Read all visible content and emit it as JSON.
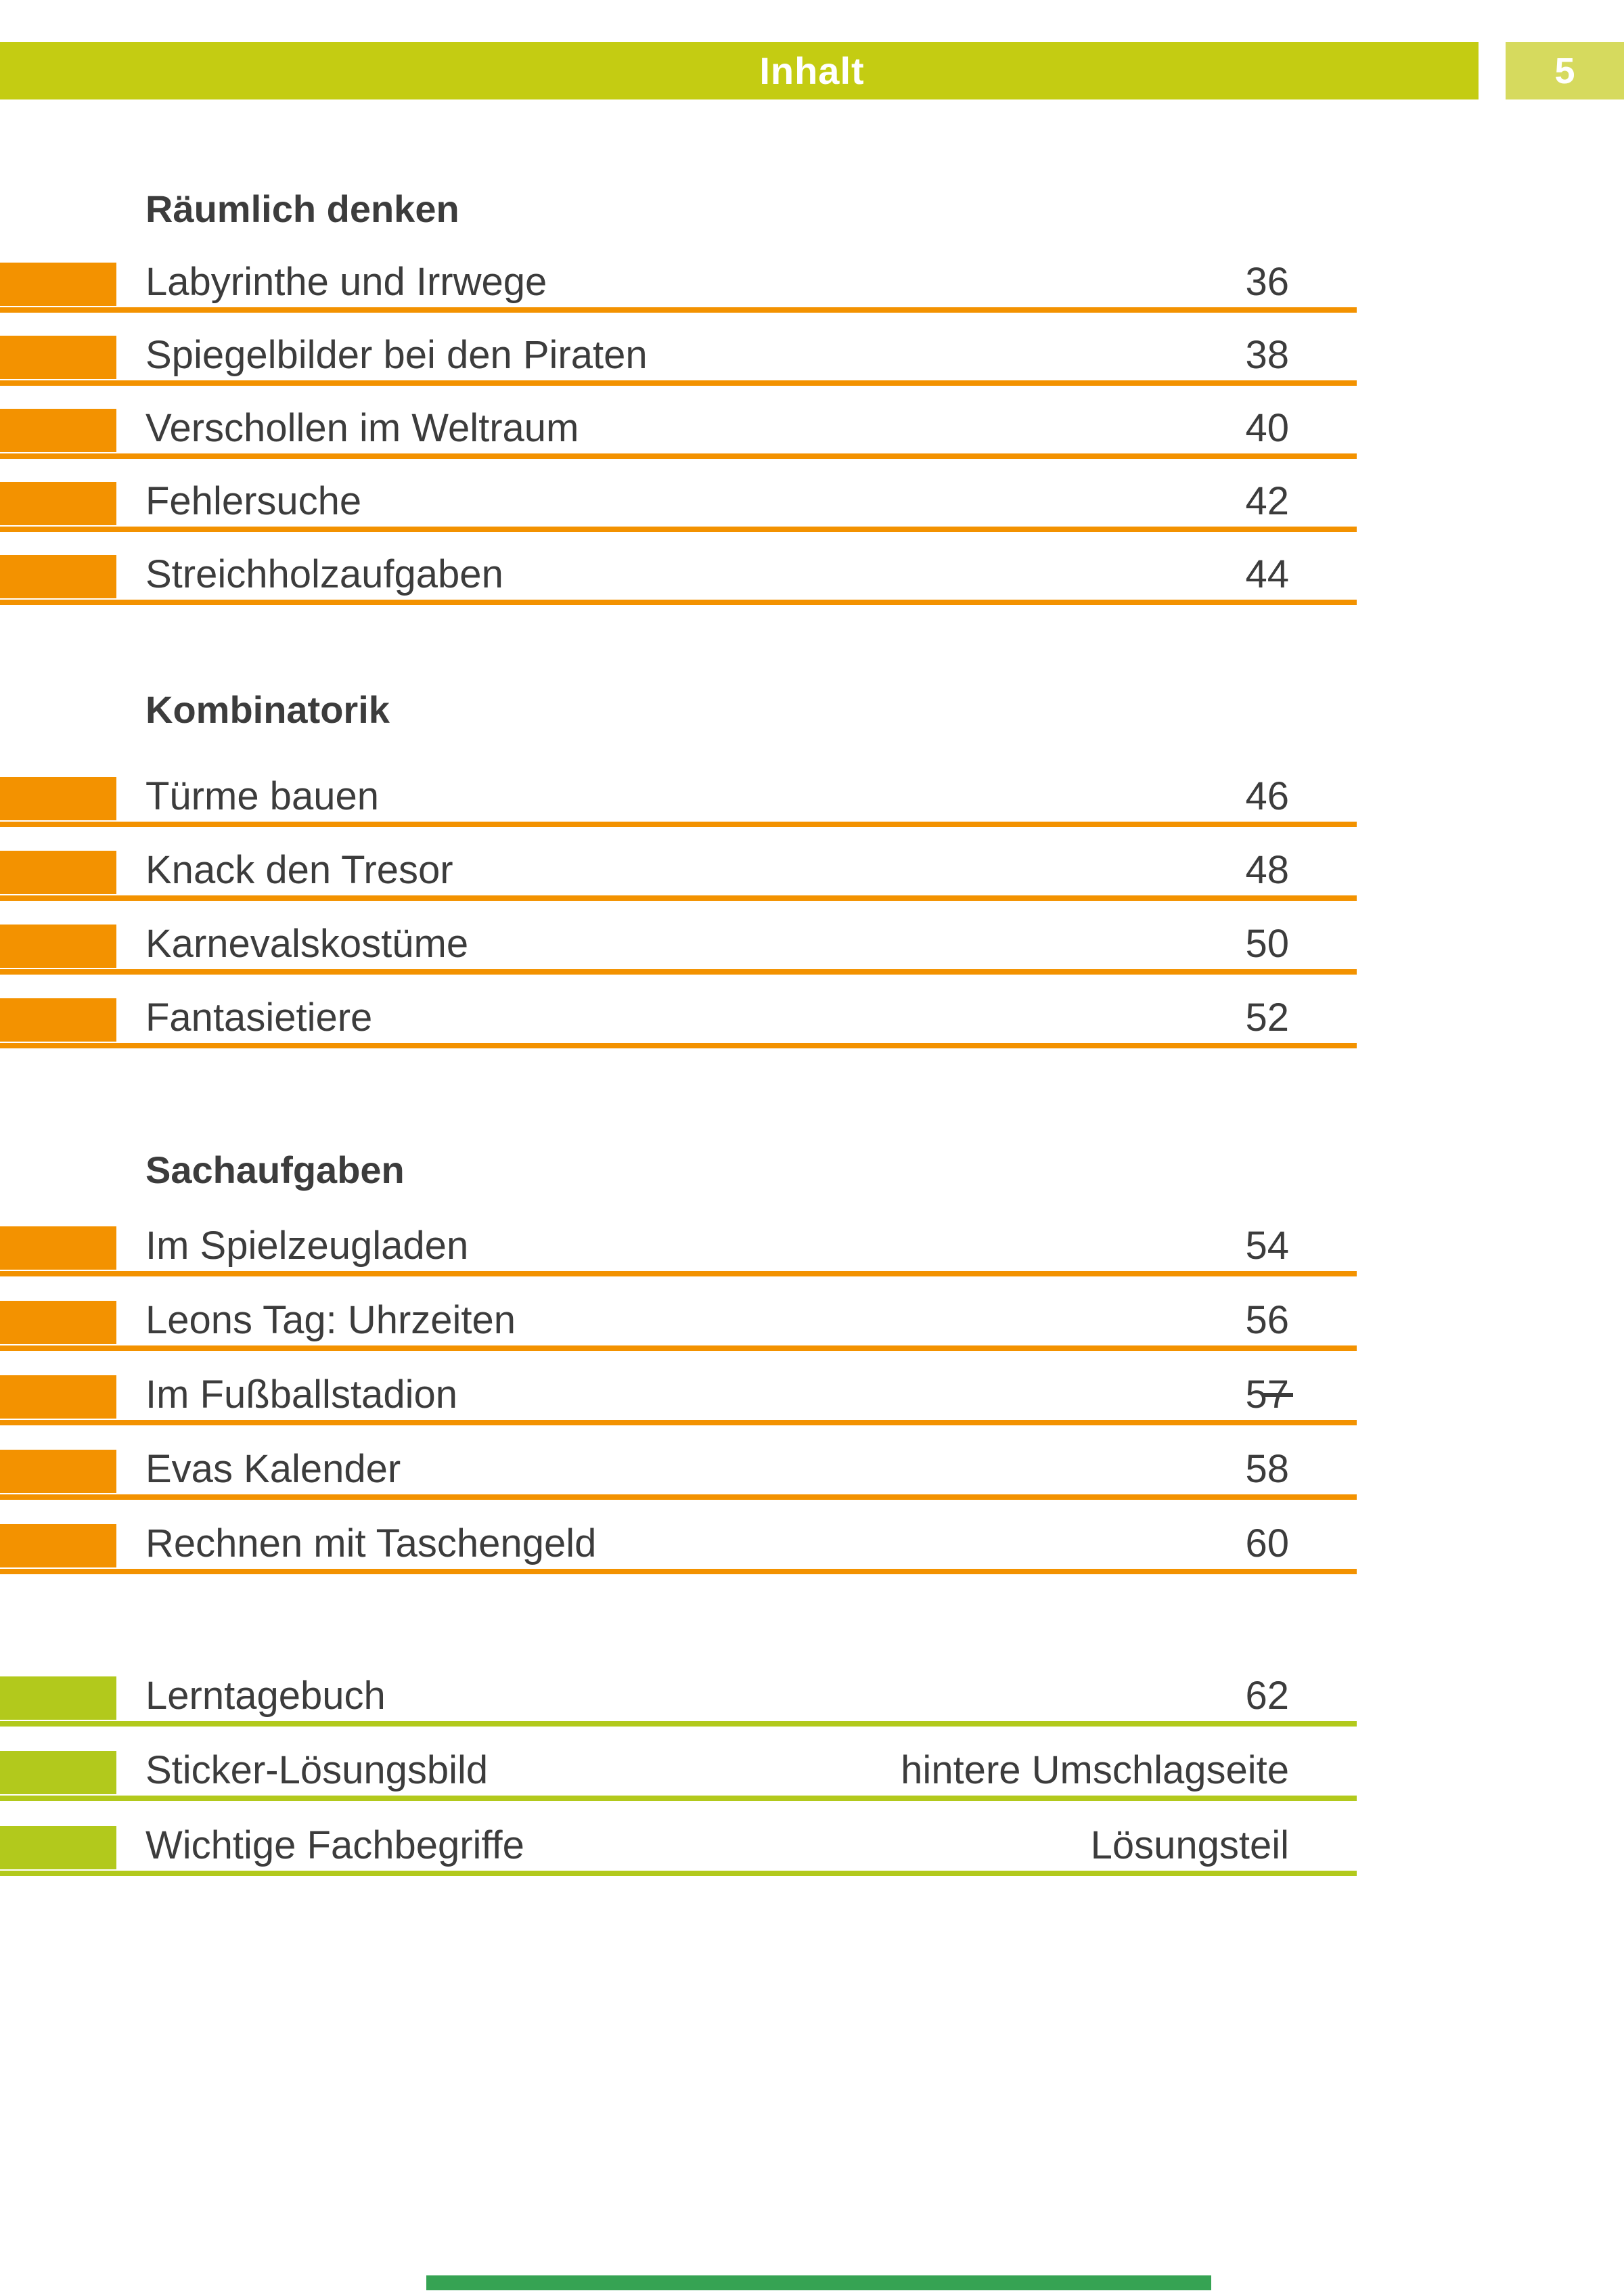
{
  "header": {
    "title": "Inhalt",
    "page_number": "5"
  },
  "sections": [
    {
      "heading": "Räumlich denken",
      "color_key": "orange",
      "entries": [
        {
          "title": "Labyrinthe und Irrwege",
          "page": "36"
        },
        {
          "title": "Spiegelbilder bei den Piraten",
          "page": "38"
        },
        {
          "title": "Verschollen im Weltraum",
          "page": "40"
        },
        {
          "title": "Fehlersuche",
          "page": "42"
        },
        {
          "title": "Streichholzaufgaben",
          "page": "44"
        }
      ]
    },
    {
      "heading": "Kombinatorik",
      "color_key": "orange",
      "entries": [
        {
          "title": "Türme bauen",
          "page": "46"
        },
        {
          "title": "Knack den Tresor",
          "page": "48"
        },
        {
          "title": "Karnevalskostüme",
          "page": "50"
        },
        {
          "title": "Fantasietiere",
          "page": "52"
        }
      ]
    },
    {
      "heading": "Sachaufgaben",
      "color_key": "orange",
      "entries": [
        {
          "title": "Im Spielzeugladen",
          "page": "54"
        },
        {
          "title": "Leons Tag: Uhrzeiten",
          "page": "56"
        },
        {
          "title": "Im Fußballstadion",
          "page": "57"
        },
        {
          "title": "Evas Kalender",
          "page": "58"
        },
        {
          "title": "Rechnen mit Taschengeld",
          "page": "60"
        }
      ]
    },
    {
      "heading": "",
      "color_key": "green",
      "entries": [
        {
          "title": "Lerntagebuch",
          "page": "62"
        },
        {
          "title": "Sticker-Lösungsbild",
          "page": "hintere Umschlagseite"
        },
        {
          "title": "Wichtige Fachbegriffe",
          "page": "Lösungsteil"
        }
      ]
    }
  ],
  "colors": {
    "orange": "#f39200",
    "green": "#b2c91c",
    "header_bar": "#c4cc12",
    "page_number_box": "#d6da5e",
    "text": "#3c3c3c",
    "bottom_strip": "#36a353"
  }
}
